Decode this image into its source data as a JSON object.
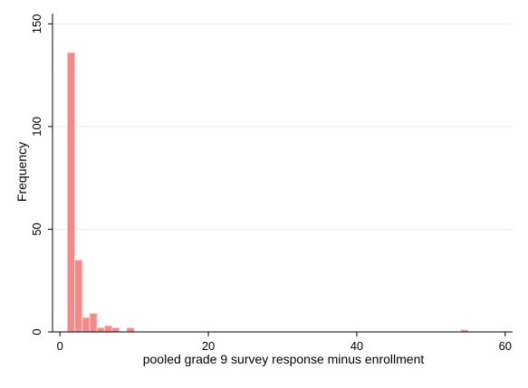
{
  "chart_data": {
    "type": "bar",
    "subtype": "histogram",
    "title": "",
    "xlabel": "pooled grade 9 survey response minus enrollment",
    "ylabel": "Frequency",
    "xlim": [
      -1,
      61
    ],
    "ylim": [
      0,
      155
    ],
    "x_ticks": [
      0,
      20,
      40,
      60
    ],
    "y_ticks": [
      0,
      50,
      100,
      150
    ],
    "grid": true,
    "legend": "none",
    "bin_width": 1,
    "bins": [
      {
        "start": 1,
        "end": 2,
        "value": 136
      },
      {
        "start": 2,
        "end": 3,
        "value": 35
      },
      {
        "start": 3,
        "end": 4,
        "value": 7
      },
      {
        "start": 4,
        "end": 5,
        "value": 9
      },
      {
        "start": 5,
        "end": 6,
        "value": 2
      },
      {
        "start": 6,
        "end": 7,
        "value": 3
      },
      {
        "start": 7,
        "end": 8,
        "value": 2
      },
      {
        "start": 9,
        "end": 10,
        "value": 2
      },
      {
        "start": 54,
        "end": 55,
        "value": 1
      }
    ],
    "colors": {
      "bar_fill": "#f4898a",
      "bar_edge": "#fbd0d0",
      "grid": "#e9eef2",
      "axis": "#000000"
    }
  }
}
